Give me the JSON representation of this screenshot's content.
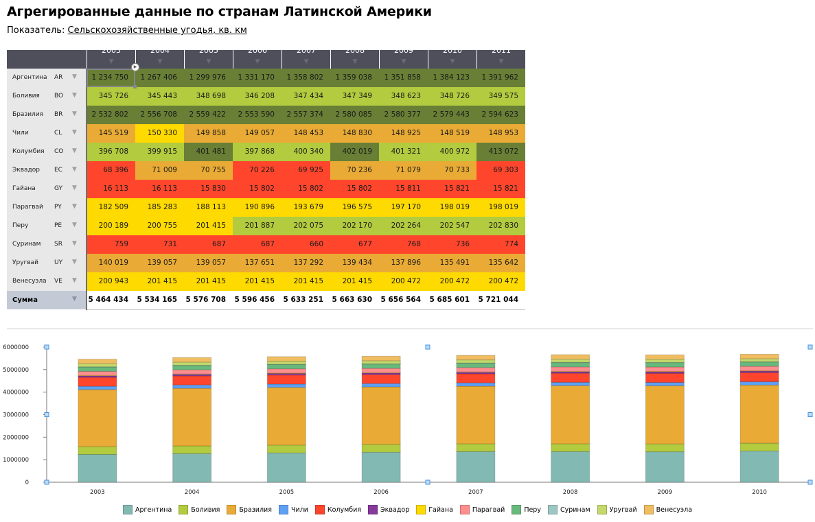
{
  "page": {
    "title": "Агрегированные данные по странам Латинской Америки",
    "indicator_label": "Показатель:",
    "indicator_value": "Сельскохозяйственные угодья, кв. км"
  },
  "table": {
    "years": [
      "2003",
      "2004",
      "2005",
      "2006",
      "2007",
      "2008",
      "2009",
      "2010",
      "2011"
    ],
    "colors": {
      "dark_green": "#687f35",
      "light_green": "#b2cb3f",
      "orange": "#e9ab35",
      "yellow": "#ffda00",
      "red": "#ff462d"
    },
    "rows": [
      {
        "name": "Аргентина",
        "code": "AR",
        "values": [
          "1 234 750",
          "1 267 406",
          "1 299 976",
          "1 331 170",
          "1 358 802",
          "1 359 038",
          "1 351 858",
          "1 384 123",
          "1 391 962"
        ],
        "colors": [
          "dark_green",
          "dark_green",
          "dark_green",
          "dark_green",
          "dark_green",
          "dark_green",
          "dark_green",
          "dark_green",
          "dark_green"
        ]
      },
      {
        "name": "Боливия",
        "code": "BO",
        "values": [
          "345 726",
          "345 443",
          "348 698",
          "346 208",
          "347 434",
          "347 349",
          "348 623",
          "348 726",
          "349 575"
        ],
        "colors": [
          "light_green",
          "light_green",
          "light_green",
          "light_green",
          "light_green",
          "light_green",
          "light_green",
          "light_green",
          "light_green"
        ]
      },
      {
        "name": "Бразилия",
        "code": "BR",
        "values": [
          "2 532 802",
          "2 556 708",
          "2 559 422",
          "2 553 590",
          "2 557 374",
          "2 580 085",
          "2 580 377",
          "2 579 443",
          "2 594 623"
        ],
        "colors": [
          "dark_green",
          "dark_green",
          "dark_green",
          "dark_green",
          "dark_green",
          "dark_green",
          "dark_green",
          "dark_green",
          "dark_green"
        ]
      },
      {
        "name": "Чили",
        "code": "CL",
        "values": [
          "145 519",
          "150 330",
          "149 858",
          "149 057",
          "148 453",
          "148 830",
          "148 925",
          "148 519",
          "148 953"
        ],
        "colors": [
          "orange",
          "yellow",
          "orange",
          "orange",
          "orange",
          "orange",
          "orange",
          "orange",
          "orange"
        ]
      },
      {
        "name": "Колумбия",
        "code": "CO",
        "values": [
          "396 708",
          "399 915",
          "401 481",
          "397 868",
          "400 340",
          "402 019",
          "401 321",
          "400 972",
          "413 072"
        ],
        "colors": [
          "light_green",
          "light_green",
          "dark_green",
          "light_green",
          "light_green",
          "dark_green",
          "light_green",
          "light_green",
          "dark_green"
        ]
      },
      {
        "name": "Эквадор",
        "code": "EC",
        "values": [
          "68 396",
          "71 009",
          "70 755",
          "70 226",
          "69 925",
          "70 236",
          "71 079",
          "70 733",
          "69 303"
        ],
        "colors": [
          "red",
          "orange",
          "orange",
          "red",
          "red",
          "orange",
          "orange",
          "orange",
          "red"
        ]
      },
      {
        "name": "Гайана",
        "code": "GY",
        "values": [
          "16 113",
          "16 113",
          "15 830",
          "15 802",
          "15 802",
          "15 802",
          "15 811",
          "15 821",
          "15 821"
        ],
        "colors": [
          "red",
          "red",
          "red",
          "red",
          "red",
          "red",
          "red",
          "red",
          "red"
        ]
      },
      {
        "name": "Парагвай",
        "code": "PY",
        "values": [
          "182 509",
          "185 283",
          "188 113",
          "190 896",
          "193 679",
          "196 575",
          "197 170",
          "198 019",
          "198 019"
        ],
        "colors": [
          "yellow",
          "yellow",
          "yellow",
          "yellow",
          "yellow",
          "yellow",
          "yellow",
          "yellow",
          "yellow"
        ]
      },
      {
        "name": "Перу",
        "code": "PE",
        "values": [
          "200 189",
          "200 755",
          "201 415",
          "201 887",
          "202 075",
          "202 170",
          "202 264",
          "202 547",
          "202 830"
        ],
        "colors": [
          "yellow",
          "yellow",
          "yellow",
          "light_green",
          "light_green",
          "light_green",
          "light_green",
          "light_green",
          "light_green"
        ]
      },
      {
        "name": "Суринам",
        "code": "SR",
        "values": [
          "759",
          "731",
          "687",
          "687",
          "660",
          "677",
          "768",
          "736",
          "774"
        ],
        "colors": [
          "red",
          "red",
          "red",
          "red",
          "red",
          "red",
          "red",
          "red",
          "red"
        ]
      },
      {
        "name": "Уругвай",
        "code": "UY",
        "values": [
          "140 019",
          "139 057",
          "139 057",
          "137 651",
          "137 292",
          "139 434",
          "137 896",
          "135 491",
          "135 642"
        ],
        "colors": [
          "orange",
          "orange",
          "orange",
          "orange",
          "orange",
          "orange",
          "orange",
          "orange",
          "orange"
        ]
      },
      {
        "name": "Венесуэла",
        "code": "VE",
        "values": [
          "200 943",
          "201 415",
          "201 415",
          "201 415",
          "201 415",
          "201 415",
          "200 472",
          "200 472",
          "200 472"
        ],
        "colors": [
          "yellow",
          "yellow",
          "yellow",
          "yellow",
          "yellow",
          "yellow",
          "yellow",
          "yellow",
          "yellow"
        ]
      }
    ],
    "sum_label": "Сумма",
    "sums": [
      "5 464 434",
      "5 534 165",
      "5 576 708",
      "5 596 456",
      "5 633 251",
      "5 663 630",
      "5 656 564",
      "5 685 601",
      "5 721 044"
    ]
  },
  "chart_data": {
    "type": "bar",
    "stacked": true,
    "title": "",
    "xlabel": "",
    "ylabel": "",
    "categories": [
      "2003",
      "2004",
      "2005",
      "2006",
      "2007",
      "2008",
      "2009",
      "2010"
    ],
    "ylim": [
      0,
      6000000
    ],
    "yticks": [
      "0",
      "1000000",
      "2000000",
      "3000000",
      "4000000",
      "5000000",
      "6000000"
    ],
    "legend_position": "bottom",
    "series": [
      {
        "name": "Аргентина",
        "color": "#82b9b3",
        "values": [
          1234750,
          1267406,
          1299976,
          1331170,
          1358802,
          1359038,
          1351858,
          1384123
        ]
      },
      {
        "name": "Боливия",
        "color": "#b2cb3f",
        "values": [
          345726,
          345443,
          348698,
          346208,
          347434,
          347349,
          348623,
          348726
        ]
      },
      {
        "name": "Бразилия",
        "color": "#e9ab35",
        "values": [
          2532802,
          2556708,
          2559422,
          2553590,
          2557374,
          2580085,
          2580377,
          2579443
        ]
      },
      {
        "name": "Чили",
        "color": "#5da0f5",
        "values": [
          145519,
          150330,
          149858,
          149057,
          148453,
          148830,
          148925,
          148519
        ]
      },
      {
        "name": "Колумбия",
        "color": "#ff462d",
        "values": [
          396708,
          399915,
          401481,
          397868,
          400340,
          402019,
          401321,
          400972
        ]
      },
      {
        "name": "Эквадор",
        "color": "#87399e",
        "values": [
          68396,
          71009,
          70755,
          70226,
          69925,
          70236,
          71079,
          70733
        ]
      },
      {
        "name": "Гайана",
        "color": "#ffda00",
        "values": [
          16113,
          16113,
          15830,
          15802,
          15802,
          15802,
          15811,
          15821
        ]
      },
      {
        "name": "Парагвай",
        "color": "#ff8e8e",
        "values": [
          182509,
          185283,
          188113,
          190896,
          193679,
          196575,
          197170,
          198019
        ]
      },
      {
        "name": "Перу",
        "color": "#68b97c",
        "values": [
          200189,
          200755,
          201415,
          201887,
          202075,
          202170,
          202264,
          202547
        ]
      },
      {
        "name": "Суринам",
        "color": "#9cc7c3",
        "values": [
          759,
          731,
          687,
          687,
          660,
          677,
          768,
          736
        ]
      },
      {
        "name": "Уругвай",
        "color": "#c4d86c",
        "values": [
          140019,
          139057,
          139057,
          137651,
          137292,
          139434,
          137896,
          135491
        ]
      },
      {
        "name": "Венесуэла",
        "color": "#f0bd60",
        "values": [
          200943,
          201415,
          201415,
          201415,
          201415,
          201415,
          200472,
          200472
        ]
      }
    ]
  }
}
